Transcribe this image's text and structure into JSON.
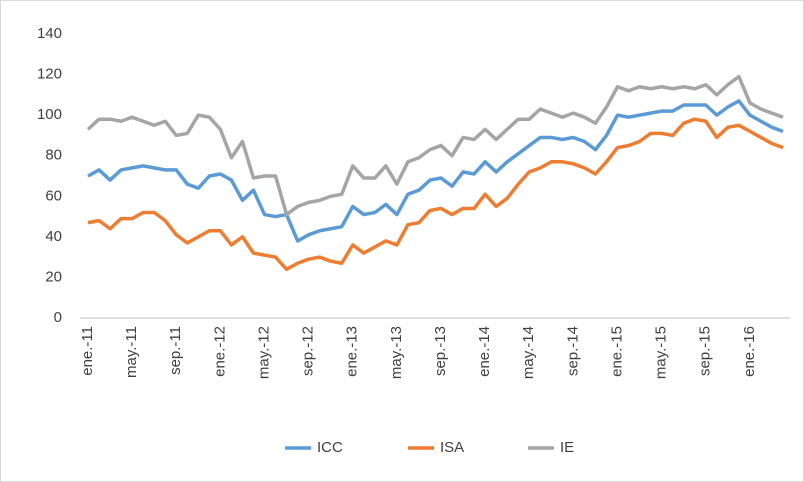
{
  "chart_data": {
    "type": "line",
    "categories": [
      "ene.-11",
      null,
      null,
      null,
      "may.-11",
      null,
      null,
      null,
      "sep.-11",
      null,
      null,
      null,
      "ene.-12",
      null,
      null,
      null,
      "may.-12",
      null,
      null,
      null,
      "sep.-12",
      null,
      null,
      null,
      "ene.-13",
      null,
      null,
      null,
      "may.-13",
      null,
      null,
      null,
      "sep.-13",
      null,
      null,
      null,
      "ene.-14",
      null,
      null,
      null,
      "may.-14",
      null,
      null,
      null,
      "sep.-14",
      null,
      null,
      null,
      "ene.-15",
      null,
      null,
      null,
      "may.-15",
      null,
      null,
      null,
      "sep.-15",
      null,
      null,
      null,
      "ene.-16",
      null,
      null,
      null
    ],
    "series": [
      {
        "name": "ICC",
        "color": "#5b9bd5",
        "values": [
          70,
          73,
          68,
          73,
          74,
          75,
          74,
          73,
          73,
          66,
          64,
          70,
          71,
          68,
          58,
          63,
          51,
          50,
          51,
          38,
          41,
          43,
          44,
          45,
          55,
          51,
          52,
          56,
          51,
          61,
          63,
          68,
          69,
          65,
          72,
          71,
          77,
          72,
          77,
          81,
          85,
          89,
          89,
          88,
          89,
          87,
          83,
          90,
          100,
          99,
          100,
          101,
          102,
          102,
          105,
          105,
          105,
          100,
          104,
          107,
          100,
          97,
          94,
          92
        ]
      },
      {
        "name": "ISA",
        "color": "#ed7d31",
        "values": [
          47,
          48,
          44,
          49,
          49,
          52,
          52,
          48,
          41,
          37,
          40,
          43,
          43,
          36,
          40,
          32,
          31,
          30,
          24,
          27,
          29,
          30,
          28,
          27,
          36,
          32,
          35,
          38,
          36,
          46,
          47,
          53,
          54,
          51,
          54,
          54,
          61,
          55,
          59,
          66,
          72,
          74,
          77,
          77,
          76,
          74,
          71,
          77,
          84,
          85,
          87,
          91,
          91,
          90,
          96,
          98,
          97,
          89,
          94,
          95,
          92,
          89,
          86,
          84
        ]
      },
      {
        "name": "IE",
        "color": "#a5a5a5",
        "values": [
          93,
          98,
          98,
          97,
          99,
          97,
          95,
          97,
          90,
          91,
          100,
          99,
          93,
          79,
          87,
          69,
          70,
          70,
          51,
          55,
          57,
          58,
          60,
          61,
          75,
          69,
          69,
          75,
          66,
          77,
          79,
          83,
          85,
          80,
          89,
          88,
          93,
          88,
          93,
          98,
          98,
          103,
          101,
          99,
          101,
          99,
          96,
          104,
          114,
          112,
          114,
          113,
          114,
          113,
          114,
          113,
          115,
          110,
          115,
          119,
          106,
          103,
          101,
          99
        ]
      }
    ],
    "ylim": [
      0,
      140
    ],
    "yticks": [
      0,
      20,
      40,
      60,
      80,
      100,
      120,
      140
    ],
    "grid": false,
    "legend": "bottom"
  }
}
